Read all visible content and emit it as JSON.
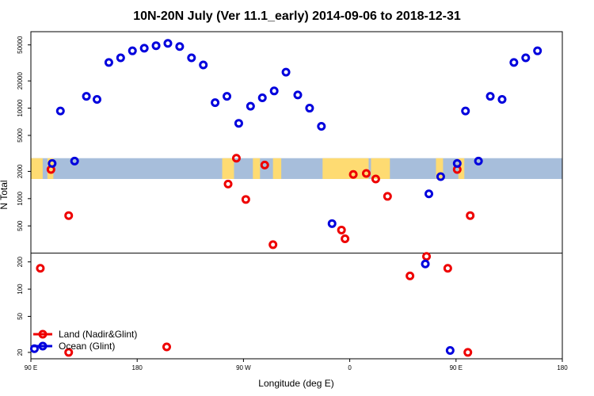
{
  "chart_data": {
    "type": "scatter",
    "title": "10N-20N July (Ver 11.1_early)   2014-09-06 to 2018-12-31",
    "xlabel": "Longitude (deg E)",
    "ylabel": "N Total",
    "yscale": "log",
    "ylim": [
      17,
      70000
    ],
    "xlim": [
      90,
      540
    ],
    "x_ticks": [
      {
        "value": 90,
        "label": "90 E"
      },
      {
        "value": 180,
        "label": "180"
      },
      {
        "value": 270,
        "label": "90 W"
      },
      {
        "value": 360,
        "label": "0"
      },
      {
        "value": 450,
        "label": "90 E"
      },
      {
        "value": 540,
        "label": "180"
      }
    ],
    "y_ticks": [
      {
        "value": 20,
        "label": "20"
      },
      {
        "value": 50,
        "label": "50"
      },
      {
        "value": 100,
        "label": "100"
      },
      {
        "value": 200,
        "label": "200"
      },
      {
        "value": 500,
        "label": "500"
      },
      {
        "value": 1000,
        "label": "1000"
      },
      {
        "value": 2000,
        "label": "2000"
      },
      {
        "value": 5000,
        "label": "5000"
      },
      {
        "value": 10000,
        "label": "10000"
      },
      {
        "value": 20000,
        "label": "20000"
      },
      {
        "value": 50000,
        "label": "50000"
      }
    ],
    "reference_line_y": 250,
    "map_band": {
      "lat_range": "10N-20N",
      "y_range": [
        1650,
        2800
      ]
    },
    "series": [
      {
        "name": "Land (Nadir&Glint)",
        "color": "#ee0000",
        "points": [
          [
            98,
            170
          ],
          [
            107,
            2100
          ],
          [
            122,
            650
          ],
          [
            122,
            20
          ],
          [
            205,
            23
          ],
          [
            257,
            1450
          ],
          [
            264,
            2800
          ],
          [
            272,
            980
          ],
          [
            288,
            2350
          ],
          [
            295,
            310
          ],
          [
            353,
            450
          ],
          [
            356,
            360
          ],
          [
            363,
            1850
          ],
          [
            374,
            1900
          ],
          [
            382,
            1650
          ],
          [
            392,
            1060
          ],
          [
            411,
            140
          ],
          [
            425,
            230
          ],
          [
            443,
            170
          ],
          [
            451,
            2100
          ],
          [
            460,
            20
          ],
          [
            462,
            650
          ]
        ]
      },
      {
        "name": "Ocean (Glint)",
        "color": "#0000dd",
        "points": [
          [
            93,
            22
          ],
          [
            108,
            2450
          ],
          [
            115,
            9300
          ],
          [
            127,
            2600
          ],
          [
            137,
            13500
          ],
          [
            146,
            12500
          ],
          [
            156,
            32000
          ],
          [
            166,
            36000
          ],
          [
            176,
            43000
          ],
          [
            186,
            46000
          ],
          [
            196,
            49000
          ],
          [
            206,
            52000
          ],
          [
            216,
            48000
          ],
          [
            226,
            36000
          ],
          [
            236,
            30000
          ],
          [
            246,
            11500
          ],
          [
            256,
            13500
          ],
          [
            266,
            6800
          ],
          [
            276,
            10500
          ],
          [
            286,
            13000
          ],
          [
            296,
            15500
          ],
          [
            306,
            25000
          ],
          [
            316,
            14000
          ],
          [
            326,
            10000
          ],
          [
            336,
            6300
          ],
          [
            345,
            530
          ],
          [
            427,
            1130
          ],
          [
            424,
            190
          ],
          [
            437,
            1750
          ],
          [
            445,
            21
          ],
          [
            451,
            2450
          ],
          [
            458,
            9300
          ],
          [
            469,
            2600
          ],
          [
            479,
            13500
          ],
          [
            489,
            12500
          ],
          [
            499,
            32000
          ],
          [
            509,
            36000
          ],
          [
            519,
            43000
          ]
        ]
      }
    ],
    "legend": {
      "position": "bottom-left",
      "entries": [
        "Land (Nadir&Glint)",
        "Ocean (Glint)"
      ]
    }
  }
}
